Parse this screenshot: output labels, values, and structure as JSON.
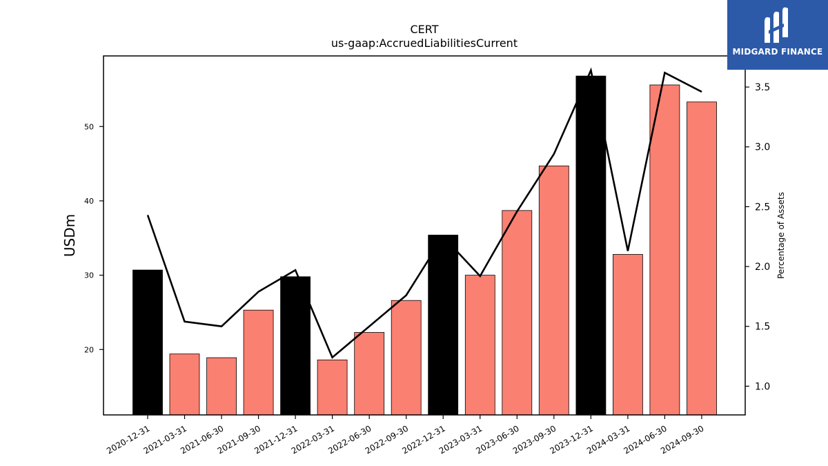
{
  "chart_data": {
    "type": "bar",
    "title": "CERT",
    "subtitle": "us-gaap:AccruedLiabilitiesCurrent",
    "ylabel": "USDm",
    "y2label": "Percentage of Assets",
    "categories": [
      "2020-12-31",
      "2021-03-31",
      "2021-06-30",
      "2021-09-30",
      "2021-12-31",
      "2022-03-31",
      "2022-06-30",
      "2022-09-30",
      "2022-12-31",
      "2023-03-31",
      "2023-06-30",
      "2023-09-30",
      "2023-12-31",
      "2024-03-31",
      "2024-06-30",
      "2024-09-30"
    ],
    "series": [
      {
        "values": [
          30.7,
          19.4,
          18.9,
          25.3,
          29.8,
          18.6,
          22.3,
          26.6,
          35.4,
          30.0,
          38.7,
          44.7,
          56.8,
          32.8,
          55.6,
          53.3
        ],
        "bar_colors": [
          "#000000",
          "#fa8072",
          "#fa8072",
          "#fa8072",
          "#000000",
          "#fa8072",
          "#fa8072",
          "#fa8072",
          "#000000",
          "#fa8072",
          "#fa8072",
          "#fa8072",
          "#000000",
          "#fa8072",
          "#fa8072",
          "#fa8072"
        ]
      },
      {
        "axis": "right",
        "values": [
          2.43,
          1.54,
          1.5,
          1.79,
          1.97,
          1.24,
          1.5,
          1.76,
          2.25,
          1.92,
          2.46,
          2.94,
          3.64,
          2.13,
          3.62,
          3.46
        ],
        "color": "#000000"
      }
    ],
    "yticks": [
      20,
      30,
      40,
      50
    ],
    "ylim": [
      11.2,
      59.5
    ],
    "y2ticks": [
      "1.0",
      "1.5",
      "2.0",
      "2.5",
      "3.0",
      "3.5"
    ],
    "y2lim": [
      0.76,
      3.76
    ],
    "grid": false
  },
  "logo": {
    "text": "MIDGARD FINANCE"
  }
}
